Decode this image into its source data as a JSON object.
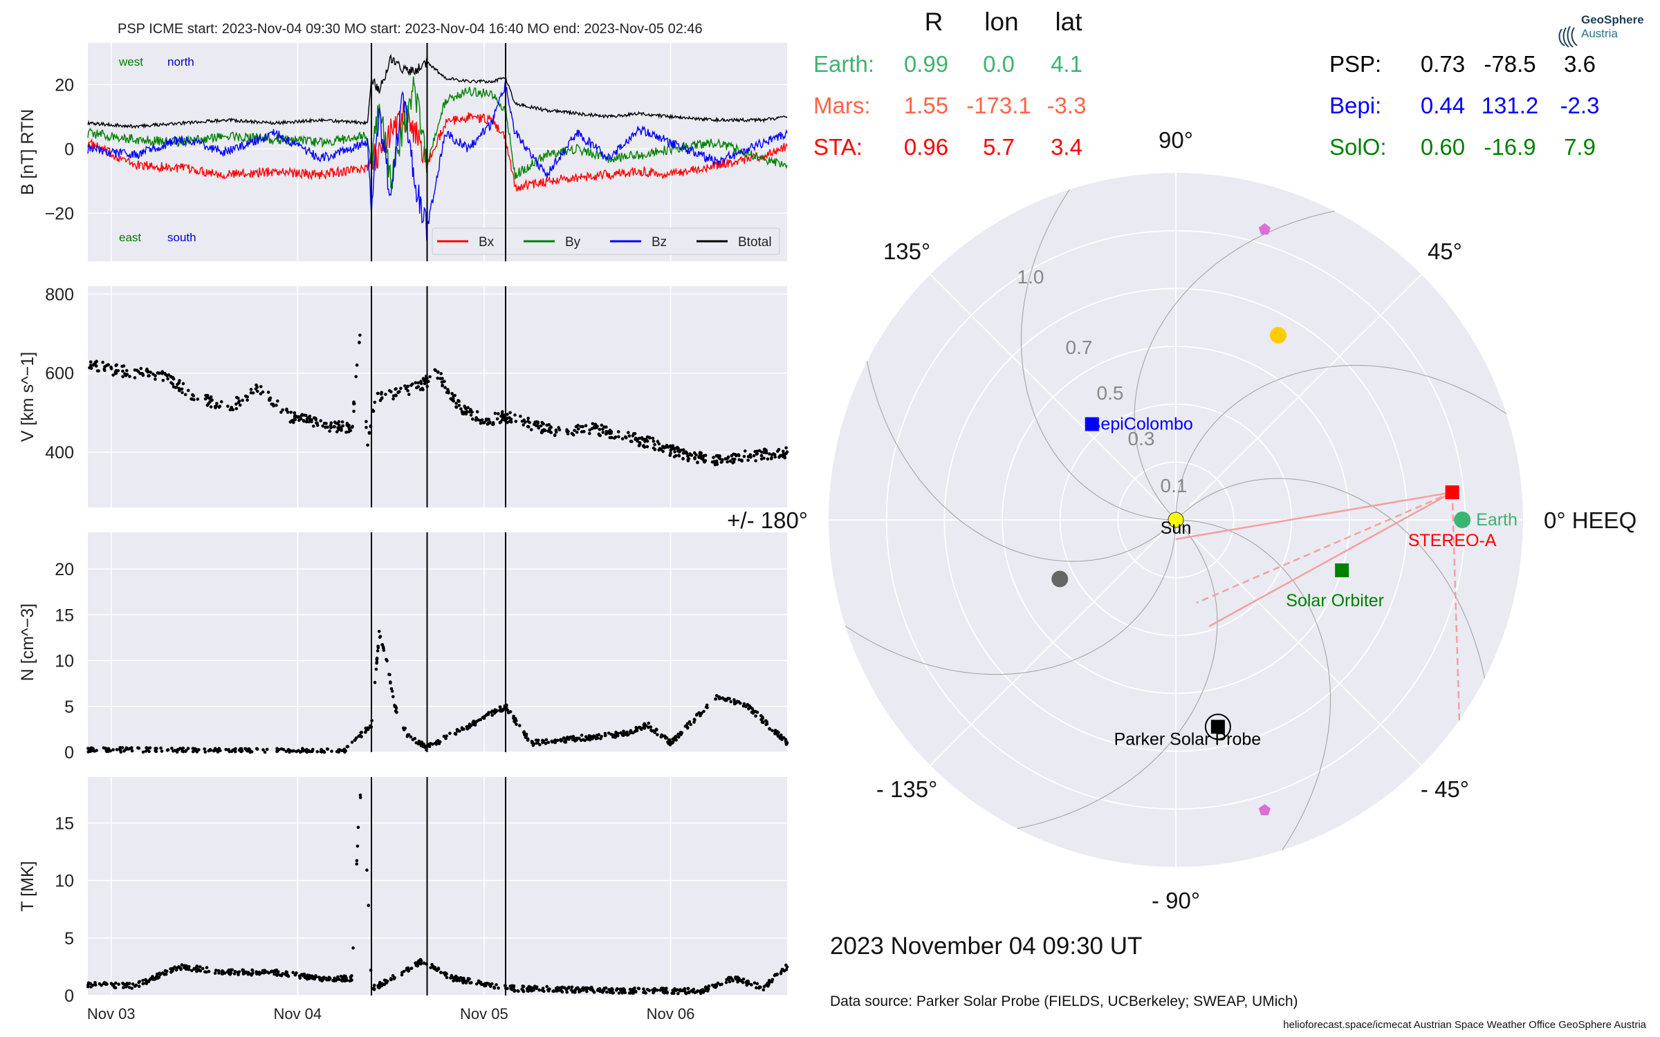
{
  "header": {
    "title": "PSP    ICME start: 2023-Nov-04 09:30   MO start: 2023-Nov-04 16:40   MO end: 2023-Nov-05 02:46"
  },
  "logo": {
    "line1": "GeoSphere",
    "line2": "Austria"
  },
  "positions_table": {
    "columns": [
      "R",
      "lon",
      "lat"
    ],
    "left": [
      {
        "name": "Earth:",
        "r": "0.99",
        "lon": "0.0",
        "lat": "4.1",
        "color": "#3cb371"
      },
      {
        "name": "Mars:",
        "r": "1.55",
        "lon": "-173.1",
        "lat": "-3.3",
        "color": "#ff6347"
      },
      {
        "name": "STA:",
        "r": "0.96",
        "lon": "5.7",
        "lat": "3.4",
        "color": "#ff0000"
      }
    ],
    "right": [
      {
        "name": "PSP:",
        "r": "0.73",
        "lon": "-78.5",
        "lat": "3.6",
        "color": "#000000"
      },
      {
        "name": "Bepi:",
        "r": "0.44",
        "lon": "131.2",
        "lat": "-2.3",
        "color": "#0000ff"
      },
      {
        "name": "SolO:",
        "r": "0.60",
        "lon": "-16.9",
        "lat": "7.9",
        "color": "#008000"
      }
    ]
  },
  "date_label": "2023 November 04  09:30 UT",
  "data_source": "Data source: Parker Solar Probe (FIELDS, UCBerkeley; SWEAP, UMich)",
  "footer": "helioforecast.space/icmecat   Austrian Space Weather Office   GeoSphere Austria",
  "chart_data": [
    {
      "type": "line",
      "ylabel": "B [nT] RTN",
      "ylim": [
        -35,
        33
      ],
      "yticks": [
        "20",
        "0",
        "−20"
      ],
      "xticks": [
        "Nov 03",
        "Nov 04",
        "Nov 05",
        "Nov 06"
      ],
      "xlim_days": [
        "2023-11-02 21:00",
        "2023-11-06 15:00"
      ],
      "annotations": [
        {
          "text": "west",
          "color": "#008000"
        },
        {
          "text": "north",
          "color": "#0000cc"
        },
        {
          "text": "east",
          "color": "#008000"
        },
        {
          "text": "south",
          "color": "#0000cc"
        }
      ],
      "legend": {
        "placement": "bottom-right"
      },
      "vlines": [
        "2023-11-04 09:30",
        "2023-11-04 16:40",
        "2023-11-05 02:46"
      ],
      "x": [
        "2023-11-02 21:00",
        "2023-11-03 03:00",
        "2023-11-03 09:00",
        "2023-11-03 15:00",
        "2023-11-03 21:00",
        "2023-11-04 03:00",
        "2023-11-04 09:00",
        "2023-11-04 09:30",
        "2023-11-04 10:30",
        "2023-11-04 12:00",
        "2023-11-04 13:30",
        "2023-11-04 15:00",
        "2023-11-04 16:40",
        "2023-11-04 19:00",
        "2023-11-04 22:00",
        "2023-11-05 01:00",
        "2023-11-05 02:46",
        "2023-11-05 04:00",
        "2023-11-05 08:00",
        "2023-11-05 12:00",
        "2023-11-05 16:00",
        "2023-11-05 20:00",
        "2023-11-06 00:00",
        "2023-11-06 06:00",
        "2023-11-06 12:00",
        "2023-11-06 15:00"
      ],
      "series": [
        {
          "name": "Bx",
          "color": "#ff0000",
          "values": [
            2,
            -5,
            -6,
            -8,
            -7,
            -8,
            -6,
            -3,
            -2,
            5,
            10,
            6,
            -5,
            8,
            10,
            9,
            3,
            -12,
            -10,
            -9,
            -8,
            -7,
            -8,
            -5,
            -2,
            1
          ]
        },
        {
          "name": "By",
          "color": "#008000",
          "values": [
            5,
            3,
            2,
            4,
            3,
            2,
            4,
            -5,
            15,
            -10,
            5,
            20,
            -5,
            15,
            18,
            17,
            12,
            -8,
            -2,
            0,
            -3,
            -2,
            0,
            2,
            -3,
            -5
          ]
        },
        {
          "name": "Bz",
          "color": "#0000ff",
          "values": [
            0,
            -2,
            3,
            -1,
            5,
            -3,
            2,
            -20,
            10,
            -15,
            18,
            -10,
            -25,
            5,
            0,
            8,
            20,
            5,
            -8,
            5,
            -3,
            6,
            2,
            -4,
            2,
            5
          ]
        },
        {
          "name": "Btotal",
          "color": "#000000",
          "values": [
            8,
            7,
            8,
            9,
            8,
            9,
            8,
            22,
            18,
            28,
            25,
            24,
            27,
            22,
            21,
            21,
            22,
            14,
            12,
            11,
            10,
            11,
            10,
            9,
            9,
            10
          ]
        }
      ]
    },
    {
      "type": "scatter",
      "ylabel": "V [km s^−1]",
      "ylim": [
        260,
        820
      ],
      "yticks": [
        "800",
        "600",
        "400"
      ],
      "xticks": [
        "Nov 03",
        "Nov 04",
        "Nov 05",
        "Nov 06"
      ],
      "vlines": [
        "2023-11-04 09:30",
        "2023-11-04 16:40",
        "2023-11-05 02:46"
      ],
      "x": [
        "2023-11-02 21:00",
        "2023-11-03 03:00",
        "2023-11-03 07:00",
        "2023-11-03 11:00",
        "2023-11-03 15:00",
        "2023-11-03 19:00",
        "2023-11-03 23:00",
        "2023-11-04 03:00",
        "2023-11-04 07:00",
        "2023-11-04 08:00",
        "2023-11-04 09:00",
        "2023-11-04 10:00",
        "2023-11-04 13:00",
        "2023-11-04 16:00",
        "2023-11-04 18:00",
        "2023-11-04 21:00",
        "2023-11-05 00:00",
        "2023-11-05 02:46",
        "2023-11-05 06:00",
        "2023-11-05 10:00",
        "2023-11-05 14:00",
        "2023-11-05 18:00",
        "2023-11-05 22:00",
        "2023-11-06 02:00",
        "2023-11-06 06:00",
        "2023-11-06 10:00",
        "2023-11-06 15:00"
      ],
      "values": [
        620,
        600,
        590,
        540,
        510,
        560,
        490,
        470,
        460,
        700,
        420,
        540,
        550,
        570,
        600,
        510,
        480,
        490,
        470,
        450,
        460,
        440,
        420,
        390,
        380,
        390,
        400
      ]
    },
    {
      "type": "scatter",
      "ylabel": "N [cm^−3]",
      "ylim": [
        0,
        24
      ],
      "yticks": [
        "20",
        "15",
        "10",
        "5",
        "0"
      ],
      "xticks": [
        "Nov 03",
        "Nov 04",
        "Nov 05",
        "Nov 06"
      ],
      "vlines": [
        "2023-11-04 09:30",
        "2023-11-04 16:40",
        "2023-11-05 02:46"
      ],
      "x": [
        "2023-11-02 21:00",
        "2023-11-03 06:00",
        "2023-11-03 18:00",
        "2023-11-04 06:00",
        "2023-11-04 09:30",
        "2023-11-04 10:30",
        "2023-11-04 11:30",
        "2023-11-04 12:30",
        "2023-11-04 14:00",
        "2023-11-04 16:40",
        "2023-11-05 02:46",
        "2023-11-05 06:00",
        "2023-11-05 12:00",
        "2023-11-05 18:00",
        "2023-11-05 21:00",
        "2023-11-06 00:00",
        "2023-11-06 06:00",
        "2023-11-06 10:00",
        "2023-11-06 15:00"
      ],
      "values": [
        0.2,
        0.2,
        0.1,
        0.1,
        3,
        13,
        10,
        5,
        2,
        0.5,
        5,
        1,
        1.5,
        2,
        3,
        1,
        6,
        5,
        1
      ]
    },
    {
      "type": "scatter",
      "ylabel": "T [MK]",
      "ylim": [
        0,
        19
      ],
      "yticks": [
        "15",
        "10",
        "5",
        "0"
      ],
      "xticks": [
        "Nov 03",
        "Nov 04",
        "Nov 05",
        "Nov 06"
      ],
      "vlines": [
        "2023-11-04 09:30",
        "2023-11-04 16:40",
        "2023-11-05 02:46"
      ],
      "x": [
        "2023-11-02 21:00",
        "2023-11-03 03:00",
        "2023-11-03 09:00",
        "2023-11-03 15:00",
        "2023-11-03 21:00",
        "2023-11-04 03:00",
        "2023-11-04 07:00",
        "2023-11-04 08:00",
        "2023-11-04 09:00",
        "2023-11-04 09:30",
        "2023-11-04 12:00",
        "2023-11-04 16:00",
        "2023-11-04 20:00",
        "2023-11-05 00:00",
        "2023-11-05 04:00",
        "2023-11-05 12:00",
        "2023-11-05 20:00",
        "2023-11-06 04:00",
        "2023-11-06 08:00",
        "2023-11-06 12:00",
        "2023-11-06 15:00"
      ],
      "values": [
        1,
        0.8,
        2.5,
        2,
        2,
        1.5,
        1.5,
        18,
        10,
        0.5,
        1.5,
        3,
        1.5,
        1,
        0.6,
        0.5,
        0.4,
        0.4,
        1.5,
        0.7,
        2.5
      ]
    },
    {
      "type": "polar",
      "title": "",
      "theta_labels": [
        "90°",
        "45°",
        "0° HEEQ",
        "- 45°",
        "- 90°",
        "- 135°",
        "+/- 180°",
        "135°"
      ],
      "r_labels": [
        "1.0",
        "0.7",
        "0.5",
        "0.3",
        "0.1"
      ],
      "r_max": 1.2,
      "bodies": [
        {
          "name": "Sun",
          "r": 0.0,
          "lon": 0,
          "color": "#ffff00",
          "marker": "circle"
        },
        {
          "name": "Earth",
          "r": 0.99,
          "lon": 0.0,
          "color": "#3cb371",
          "marker": "circle"
        },
        {
          "name": "STEREO-A",
          "r": 0.96,
          "lon": 5.7,
          "color": "#ff0000",
          "marker": "square"
        },
        {
          "name": "Solar Orbiter",
          "r": 0.6,
          "lon": -16.9,
          "color": "#008000",
          "marker": "square"
        },
        {
          "name": "BepiColombo",
          "r": 0.44,
          "lon": 131.2,
          "color": "#0000ff",
          "marker": "square"
        },
        {
          "name": "Parker Solar Probe",
          "r": 0.73,
          "lon": -78.5,
          "color": "#000000",
          "marker": "square"
        },
        {
          "name": "",
          "r": 0.73,
          "lon": 61,
          "color": "#ffcc00",
          "marker": "circle"
        },
        {
          "name": "",
          "r": 0.45,
          "lon": -153,
          "color": "#666666",
          "marker": "circle"
        },
        {
          "name": "",
          "r": 1.05,
          "lon": 73,
          "color": "#da70d6",
          "marker": "pentagon"
        },
        {
          "name": "",
          "r": 1.05,
          "lon": -73,
          "color": "#da70d6",
          "marker": "pentagon"
        }
      ]
    }
  ]
}
